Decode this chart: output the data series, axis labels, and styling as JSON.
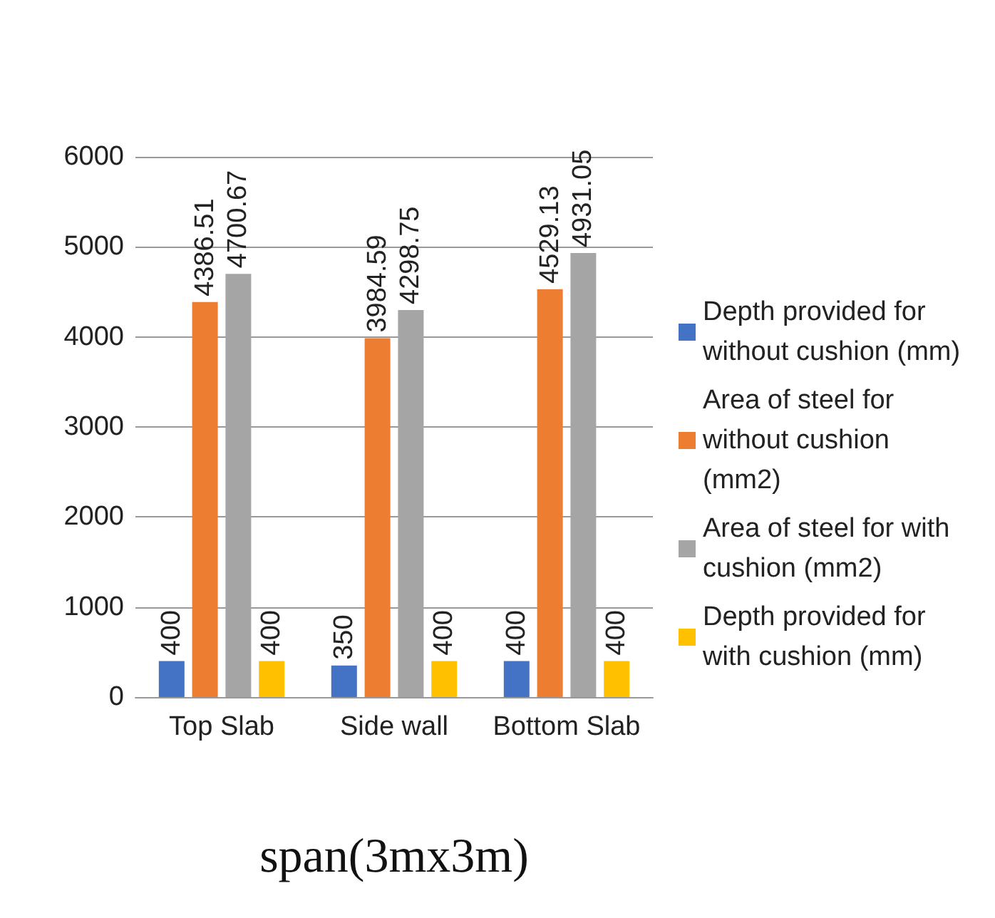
{
  "chart_data": {
    "type": "bar",
    "xlabel": "span(3mx3m)",
    "categories": [
      "Top Slab",
      "Side wall",
      "Bottom Slab"
    ],
    "series": [
      {
        "name": "Depth provided for without cushion (mm)",
        "color": "#4472c4",
        "values": [
          400,
          350,
          400
        ]
      },
      {
        "name": "Area of steel for without cushion (mm2)",
        "color": "#ed7d31",
        "values": [
          4386.51,
          3984.59,
          4529.13
        ]
      },
      {
        "name": "Area of steel for with cushion (mm2)",
        "color": "#a5a5a5",
        "values": [
          4700.67,
          4298.75,
          4931.05
        ]
      },
      {
        "name": "Depth provided for with cushion (mm)",
        "color": "#ffc000",
        "values": [
          400,
          400,
          400
        ]
      }
    ],
    "ylim": [
      0,
      6000
    ],
    "yticks": [
      0,
      1000,
      2000,
      3000,
      4000,
      5000,
      6000
    ],
    "grid": "y",
    "legend": "right",
    "data_labels": true
  }
}
